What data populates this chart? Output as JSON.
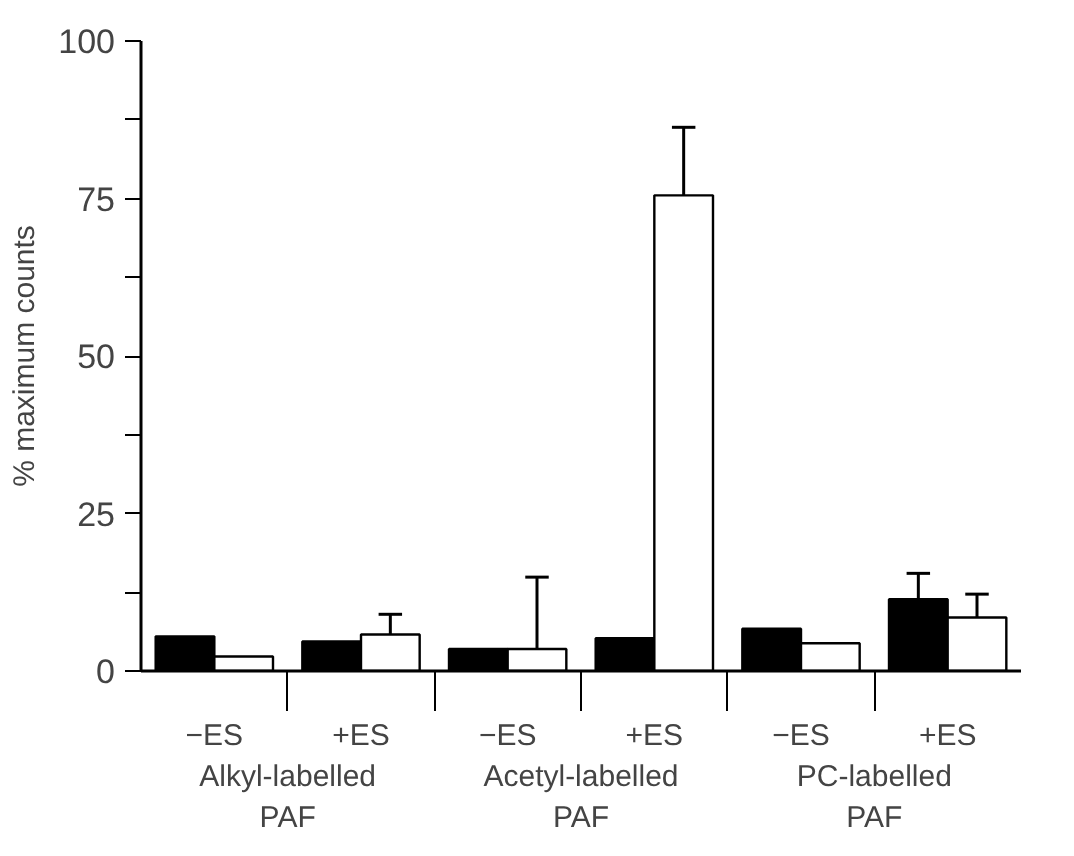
{
  "chart_data": {
    "type": "bar",
    "categories": [
      "−ES",
      "+ES",
      "−ES",
      "+ES",
      "−ES",
      "+ES"
    ],
    "ylabel": "% maximum counts",
    "annotations": [
      "Alkyl-labelled PAF",
      "Acetyl-labelled PAF",
      "PC-labelled PAF"
    ],
    "series": [
      {
        "color": "#000000",
        "values": [
          5.5,
          4.7,
          3.5,
          5.2,
          6.7,
          11.4
        ],
        "errors": [
          null,
          null,
          null,
          null,
          null,
          [
            11.4,
            15.5
          ]
        ]
      },
      {
        "color": "#ffffff",
        "values": [
          2.3,
          5.8,
          3.5,
          75.5,
          4.4,
          8.5
        ],
        "errors": [
          null,
          [
            5.8,
            9.0
          ],
          [
            3.5,
            14.9
          ],
          [
            75.5,
            86.3
          ],
          null,
          [
            8.5,
            12.2
          ]
        ]
      }
    ],
    "ylim": [
      0,
      100
    ],
    "yticks": [
      0,
      {
        "value": 12.5,
        "label": null
      },
      25,
      {
        "value": 37.5,
        "label": null
      },
      50,
      {
        "value": 62.5,
        "label": null
      },
      75,
      {
        "value": 87.5,
        "label": null
      },
      100
    ],
    "grid": false
  }
}
